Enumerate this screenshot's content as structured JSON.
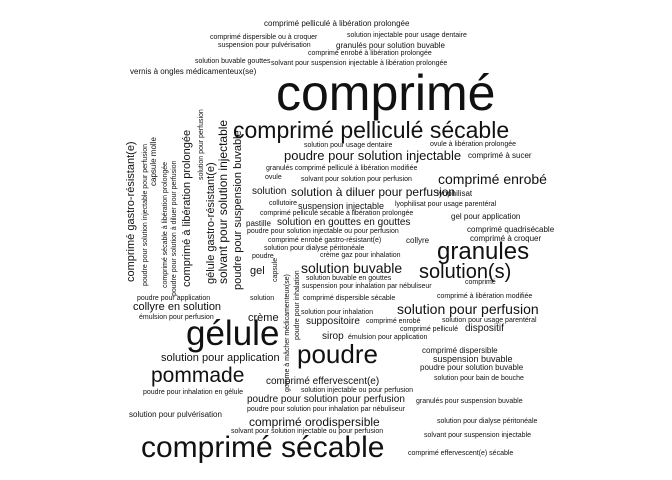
{
  "words": [
    {
      "text": "comprimé",
      "weight": 100,
      "orientation": "horizontal"
    },
    {
      "text": "comprimé pelliculé sécable",
      "weight": 58,
      "orientation": "horizontal"
    },
    {
      "text": "gélule",
      "weight": 70,
      "orientation": "horizontal"
    },
    {
      "text": "comprimé sécable",
      "weight": 60,
      "orientation": "horizontal"
    },
    {
      "text": "poudre",
      "weight": 52,
      "orientation": "horizontal"
    },
    {
      "text": "granules",
      "weight": 48,
      "orientation": "horizontal"
    },
    {
      "text": "solution(s)",
      "weight": 40,
      "orientation": "horizontal"
    },
    {
      "text": "pommade",
      "weight": 42,
      "orientation": "horizontal"
    },
    {
      "text": "comprimé enrobé",
      "weight": 28,
      "orientation": "horizontal"
    },
    {
      "text": "solution buvable",
      "weight": 28,
      "orientation": "horizontal"
    },
    {
      "text": "solution pour perfusion",
      "weight": 28,
      "orientation": "horizontal"
    },
    {
      "text": "poudre pour solution injectable",
      "weight": 26,
      "orientation": "horizontal"
    },
    {
      "text": "solution à diluer pour perfusion",
      "weight": 24,
      "orientation": "horizontal"
    },
    {
      "text": "comprimé gastro-résistant(e)",
      "weight": 24,
      "orientation": "vertical"
    },
    {
      "text": "solvant pour solution injectable",
      "weight": 24,
      "orientation": "vertical"
    },
    {
      "text": "gélule gastro-résistant(e)",
      "weight": 24,
      "orientation": "vertical"
    },
    {
      "text": "comprimé à libération prolongée",
      "weight": 22,
      "orientation": "vertical"
    },
    {
      "text": "poudre pour suspension buvable",
      "weight": 22,
      "orientation": "vertical"
    },
    {
      "text": "comprimé orodispersible",
      "weight": 24,
      "orientation": "horizontal"
    },
    {
      "text": "solution pour application",
      "weight": 22,
      "orientation": "horizontal"
    },
    {
      "text": "collyre en solution",
      "weight": 22,
      "orientation": "horizontal"
    },
    {
      "text": "poudre pour solution pour perfusion",
      "weight": 20,
      "orientation": "horizontal"
    },
    {
      "text": "comprimé effervescent(e)",
      "weight": 20,
      "orientation": "horizontal"
    },
    {
      "text": "solution en gouttes en gouttes",
      "weight": 20,
      "orientation": "horizontal"
    },
    {
      "text": "suppositoire",
      "weight": 20,
      "orientation": "horizontal"
    },
    {
      "text": "crème",
      "weight": 20,
      "orientation": "horizontal"
    },
    {
      "text": "solution",
      "weight": 19,
      "orientation": "horizontal"
    },
    {
      "text": "sirop",
      "weight": 19,
      "orientation": "horizontal"
    },
    {
      "text": "gel",
      "weight": 19,
      "orientation": "horizontal"
    },
    {
      "text": "dispositif",
      "weight": 19,
      "orientation": "horizontal"
    },
    {
      "text": "capsule molle",
      "weight": 18,
      "orientation": "vertical"
    },
    {
      "text": "suspension injectable",
      "weight": 17,
      "orientation": "horizontal"
    },
    {
      "text": "suspension buvable",
      "weight": 17,
      "orientation": "horizontal"
    },
    {
      "text": "comprimé pelliculé à libération prolongée",
      "weight": 17,
      "orientation": "horizontal"
    },
    {
      "text": "solution injectable pour usage dentaire",
      "weight": 15,
      "orientation": "horizontal"
    },
    {
      "text": "comprimé dispersible ou à croquer",
      "weight": 15,
      "orientation": "horizontal"
    },
    {
      "text": "suspension pour pulvérisation",
      "weight": 15,
      "orientation": "horizontal"
    },
    {
      "text": "granulés pour solution buvable",
      "weight": 15,
      "orientation": "horizontal"
    },
    {
      "text": "comprimé enrobé à libération prolongée",
      "weight": 14,
      "orientation": "horizontal"
    },
    {
      "text": "solution buvable gouttes",
      "weight": 15,
      "orientation": "horizontal"
    },
    {
      "text": "solvant pour suspension injectable à libération prolongée",
      "weight": 14,
      "orientation": "horizontal"
    },
    {
      "text": "vernis à ongles médicamenteux(se)",
      "weight": 15,
      "orientation": "horizontal"
    },
    {
      "text": "solution pour usage dentaire",
      "weight": 14,
      "orientation": "horizontal"
    },
    {
      "text": "ovule à libération prolongée",
      "weight": 14,
      "orientation": "horizontal"
    },
    {
      "text": "comprimé à sucer",
      "weight": 15,
      "orientation": "horizontal"
    },
    {
      "text": "granulés comprimé pelliculé à libération modifiée",
      "weight": 14,
      "orientation": "horizontal"
    },
    {
      "text": "ovule",
      "weight": 14,
      "orientation": "horizontal"
    },
    {
      "text": "solvant pour solution pour perfusion",
      "weight": 14,
      "orientation": "horizontal"
    },
    {
      "text": "lyophilisat",
      "weight": 15,
      "orientation": "horizontal"
    },
    {
      "text": "collutoire",
      "weight": 14,
      "orientation": "horizontal"
    },
    {
      "text": "lyophilisat pour usage parentéral",
      "weight": 14,
      "orientation": "horizontal"
    },
    {
      "text": "comprimé pelliculé sécable à libération prolongée",
      "weight": 14,
      "orientation": "horizontal"
    },
    {
      "text": "gel pour application",
      "weight": 15,
      "orientation": "horizontal"
    },
    {
      "text": "pastille",
      "weight": 15,
      "orientation": "horizontal"
    },
    {
      "text": "comprimé quadrisécable",
      "weight": 15,
      "orientation": "horizontal"
    },
    {
      "text": "poudre pour solution injectable ou pour perfusion",
      "weight": 14,
      "orientation": "horizontal"
    },
    {
      "text": "comprimé à croquer",
      "weight": 15,
      "orientation": "horizontal"
    },
    {
      "text": "comprimé enrobé gastro-résistant(e)",
      "weight": 14,
      "orientation": "horizontal"
    },
    {
      "text": "collyre",
      "weight": 15,
      "orientation": "horizontal"
    },
    {
      "text": "solution pour dialyse péritonéale",
      "weight": 14,
      "orientation": "horizontal"
    },
    {
      "text": "poudre",
      "weight": 14,
      "orientation": "horizontal"
    },
    {
      "text": "crème gaz pour inhalation",
      "weight": 14,
      "orientation": "horizontal"
    },
    {
      "text": "solution buvable en gouttes",
      "weight": 14,
      "orientation": "horizontal"
    },
    {
      "text": "comprimé",
      "weight": 14,
      "orientation": "horizontal"
    },
    {
      "text": "suspension pour inhalation par nébuliseur",
      "weight": 14,
      "orientation": "horizontal"
    },
    {
      "text": "poudre pour application",
      "weight": 14,
      "orientation": "horizontal"
    },
    {
      "text": "comprimé à libération modifiée",
      "weight": 14,
      "orientation": "horizontal"
    },
    {
      "text": "solution",
      "weight": 14,
      "orientation": "horizontal"
    },
    {
      "text": "comprimé dispersible sécable",
      "weight": 14,
      "orientation": "horizontal"
    },
    {
      "text": "émulsion pour perfusion",
      "weight": 14,
      "orientation": "horizontal"
    },
    {
      "text": "solution pour inhalation",
      "weight": 14,
      "orientation": "horizontal"
    },
    {
      "text": "comprimé enrobé",
      "weight": 14,
      "orientation": "horizontal"
    },
    {
      "text": "solution pour usage parentéral",
      "weight": 14,
      "orientation": "horizontal"
    },
    {
      "text": "comprimé pelliculé",
      "weight": 14,
      "orientation": "horizontal"
    },
    {
      "text": "émulsion pour application",
      "weight": 14,
      "orientation": "horizontal"
    },
    {
      "text": "comprimé dispersible",
      "weight": 15,
      "orientation": "horizontal"
    },
    {
      "text": "poudre pour solution buvable",
      "weight": 15,
      "orientation": "horizontal"
    },
    {
      "text": "solution pour bain de bouche",
      "weight": 14,
      "orientation": "horizontal"
    },
    {
      "text": "solution injectable ou pour perfusion",
      "weight": 14,
      "orientation": "horizontal"
    },
    {
      "text": "poudre pour inhalation en gélule",
      "weight": 14,
      "orientation": "horizontal"
    },
    {
      "text": "granulés pour suspension buvable",
      "weight": 14,
      "orientation": "horizontal"
    },
    {
      "text": "solution pour pulvérisation",
      "weight": 14,
      "orientation": "horizontal"
    },
    {
      "text": "poudre pour solution pour inhalation par nébuliseur",
      "weight": 14,
      "orientation": "horizontal"
    },
    {
      "text": "solution pour dialyse péritonéale",
      "weight": 14,
      "orientation": "horizontal"
    },
    {
      "text": "solvant pour solution injectable ou pour perfusion",
      "weight": 14,
      "orientation": "horizontal"
    },
    {
      "text": "solvant pour suspension injectable",
      "weight": 14,
      "orientation": "horizontal"
    },
    {
      "text": "comprimé effervescent(e) sécable",
      "weight": 14,
      "orientation": "horizontal"
    },
    {
      "text": "poudre pour solution injectable pour perfusion",
      "weight": 14,
      "orientation": "vertical"
    },
    {
      "text": "comprimé sécable à libération prolongée",
      "weight": 14,
      "orientation": "vertical"
    },
    {
      "text": "poudre pour solution à diluer pour perfusion",
      "weight": 14,
      "orientation": "vertical"
    },
    {
      "text": "solution pour perfusion",
      "weight": 14,
      "orientation": "vertical"
    },
    {
      "text": "capsule",
      "weight": 14,
      "orientation": "vertical"
    },
    {
      "text": "gomme à mâcher médicamenteux(se)",
      "weight": 14,
      "orientation": "vertical"
    },
    {
      "text": "poudre pour inhalation",
      "weight": 14,
      "orientation": "vertical"
    }
  ]
}
